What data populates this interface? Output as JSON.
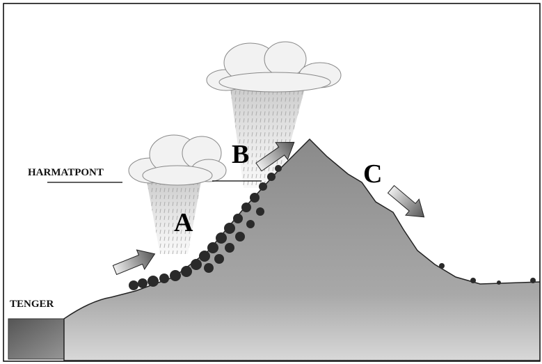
{
  "labels": {
    "harmatpont": "HARMATPONT",
    "tenger": "TENGER",
    "a": "A",
    "b": "B",
    "c": "C"
  }
}
